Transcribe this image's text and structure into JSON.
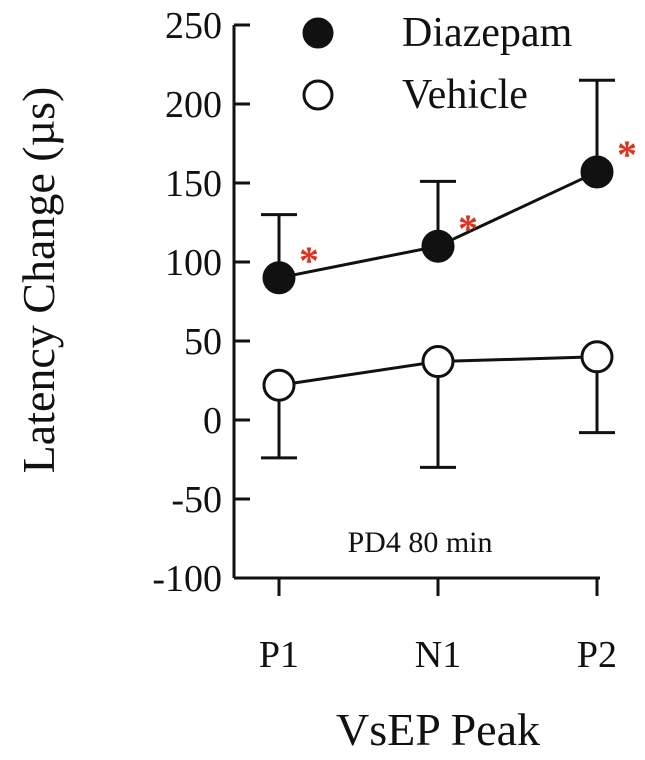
{
  "chart_data": {
    "type": "line",
    "categories": [
      "P1",
      "N1",
      "P2"
    ],
    "xlabel": "VsEP Peak",
    "ylabel": "Latency Change (µs)",
    "ylim": [
      -100,
      250
    ],
    "yticks": [
      -100,
      -50,
      0,
      50,
      100,
      150,
      200,
      250
    ],
    "ytick_labels": [
      "-100",
      "-50",
      "0",
      "50",
      "100",
      "150",
      "200",
      "250"
    ],
    "annotation": "PD4 80 min",
    "legend_position": "top-left",
    "series": [
      {
        "name": "Diazepam",
        "marker": "filled-circle",
        "values": [
          90,
          110,
          157
        ],
        "error": [
          40,
          41,
          58
        ],
        "error_direction": "up",
        "significance": [
          "*",
          "*",
          "*"
        ]
      },
      {
        "name": "Vehicle",
        "marker": "open-circle",
        "values": [
          22,
          37,
          40
        ],
        "error": [
          46,
          67,
          48
        ],
        "error_direction": "down",
        "significance": [
          "",
          "",
          ""
        ]
      }
    ],
    "colors": {
      "line": "#111111",
      "marker_fill": "#111111",
      "open_fill": "#ffffff",
      "star": "#e0311f"
    }
  }
}
